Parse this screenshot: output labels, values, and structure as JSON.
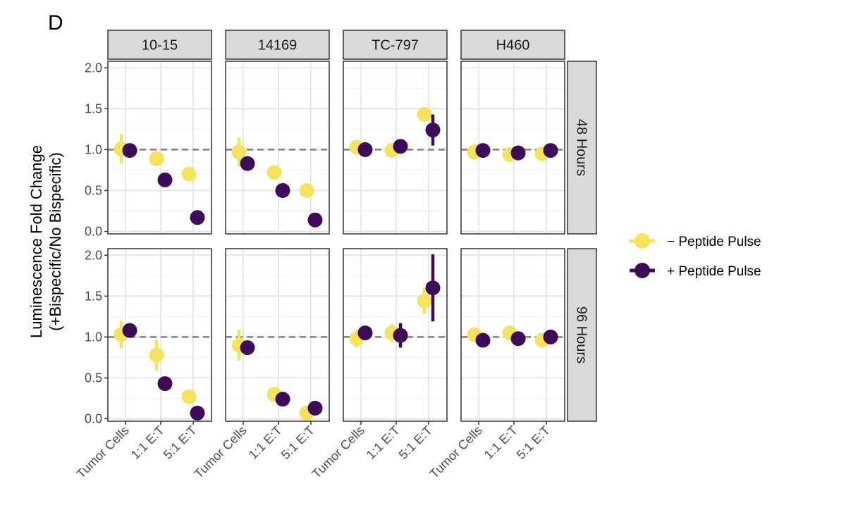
{
  "figure": {
    "panel_label": "D",
    "ylabel_line1": "Luminescence Fold Change",
    "ylabel_line2": "(+Bispecific/No Bispecific)"
  },
  "legend": [
    {
      "label": "− Peptide Pulse",
      "color": "#f5e35c"
    },
    {
      "label": "+ Peptide Pulse",
      "color": "#3d0b57"
    }
  ],
  "chart_data": {
    "type": "scatter",
    "subtype": "faceted point-range",
    "facet_columns": [
      "10-15",
      "14169",
      "TC-797",
      "H460"
    ],
    "facet_rows": [
      "48 Hours",
      "96 Hours"
    ],
    "categories": [
      "Tumor Cells",
      "1:1 E:T",
      "5:1 E:T"
    ],
    "ylim": [
      -0.03,
      2.08
    ],
    "yticks": [
      "0.0",
      "0.5",
      "1.0",
      "1.5",
      "2.0"
    ],
    "reference_line": 1.0,
    "grid": true,
    "legend_position": "right",
    "series": [
      {
        "name": "− Peptide Pulse",
        "color": "#f5e35c",
        "panels": [
          {
            "col": "10-15",
            "row": "48 Hours",
            "values": [
              1.01,
              0.89,
              0.7
            ],
            "ci": [
              [
                0.83,
                1.19
              ],
              [
                0.83,
                0.95
              ],
              [
                0.66,
                0.74
              ]
            ]
          },
          {
            "col": "14169",
            "row": "48 Hours",
            "values": [
              0.97,
              0.72,
              0.5
            ],
            "ci": [
              [
                0.8,
                1.14
              ],
              [
                0.68,
                0.76
              ],
              [
                0.46,
                0.54
              ]
            ]
          },
          {
            "col": "TC-797",
            "row": "48 Hours",
            "values": [
              1.03,
              0.99,
              1.43
            ],
            "ci": [
              [
                0.99,
                1.07
              ],
              [
                0.95,
                1.03
              ],
              [
                1.39,
                1.47
              ]
            ]
          },
          {
            "col": "H460",
            "row": "48 Hours",
            "values": [
              0.97,
              0.94,
              0.95
            ],
            "ci": [
              [
                0.93,
                1.01
              ],
              [
                0.9,
                0.98
              ],
              [
                0.91,
                0.99
              ]
            ]
          },
          {
            "col": "10-15",
            "row": "96 Hours",
            "values": [
              1.03,
              0.78,
              0.27
            ],
            "ci": [
              [
                0.86,
                1.2
              ],
              [
                0.59,
                0.97
              ],
              [
                0.23,
                0.31
              ]
            ]
          },
          {
            "col": "14169",
            "row": "96 Hours",
            "values": [
              0.9,
              0.3,
              0.07
            ],
            "ci": [
              [
                0.71,
                1.09
              ],
              [
                0.26,
                0.34
              ],
              [
                0.03,
                0.11
              ]
            ]
          },
          {
            "col": "TC-797",
            "row": "96 Hours",
            "values": [
              0.98,
              1.05,
              1.44
            ],
            "ci": [
              [
                0.87,
                1.09
              ],
              [
                0.94,
                1.16
              ],
              [
                1.28,
                1.6
              ]
            ]
          },
          {
            "col": "H460",
            "row": "96 Hours",
            "values": [
              1.03,
              1.05,
              0.96
            ],
            "ci": [
              [
                0.99,
                1.07
              ],
              [
                1.01,
                1.09
              ],
              [
                0.92,
                1.0
              ]
            ]
          }
        ]
      },
      {
        "name": "+ Peptide Pulse",
        "color": "#3d0b57",
        "panels": [
          {
            "col": "10-15",
            "row": "48 Hours",
            "values": [
              0.99,
              0.63,
              0.17
            ],
            "ci": [
              [
                0.95,
                1.03
              ],
              [
                0.59,
                0.67
              ],
              [
                0.13,
                0.21
              ]
            ]
          },
          {
            "col": "14169",
            "row": "48 Hours",
            "values": [
              0.83,
              0.5,
              0.14
            ],
            "ci": [
              [
                0.79,
                0.87
              ],
              [
                0.46,
                0.54
              ],
              [
                0.1,
                0.18
              ]
            ]
          },
          {
            "col": "TC-797",
            "row": "48 Hours",
            "values": [
              1.0,
              1.04,
              1.24
            ],
            "ci": [
              [
                0.96,
                1.04
              ],
              [
                1.0,
                1.08
              ],
              [
                1.05,
                1.43
              ]
            ]
          },
          {
            "col": "H460",
            "row": "48 Hours",
            "values": [
              0.99,
              0.96,
              0.99
            ],
            "ci": [
              [
                0.95,
                1.03
              ],
              [
                0.92,
                1.0
              ],
              [
                0.95,
                1.03
              ]
            ]
          },
          {
            "col": "10-15",
            "row": "96 Hours",
            "values": [
              1.08,
              0.43,
              0.07
            ],
            "ci": [
              [
                1.04,
                1.12
              ],
              [
                0.39,
                0.47
              ],
              [
                0.03,
                0.11
              ]
            ]
          },
          {
            "col": "14169",
            "row": "96 Hours",
            "values": [
              0.87,
              0.24,
              0.13
            ],
            "ci": [
              [
                0.83,
                0.91
              ],
              [
                0.2,
                0.28
              ],
              [
                0.09,
                0.17
              ]
            ]
          },
          {
            "col": "TC-797",
            "row": "96 Hours",
            "values": [
              1.05,
              1.02,
              1.6
            ],
            "ci": [
              [
                1.01,
                1.09
              ],
              [
                0.87,
                1.17
              ],
              [
                1.19,
                2.01
              ]
            ]
          },
          {
            "col": "H460",
            "row": "96 Hours",
            "values": [
              0.96,
              0.98,
              1.0
            ],
            "ci": [
              [
                0.92,
                1.0
              ],
              [
                0.94,
                1.02
              ],
              [
                0.96,
                1.04
              ]
            ]
          }
        ]
      }
    ]
  }
}
